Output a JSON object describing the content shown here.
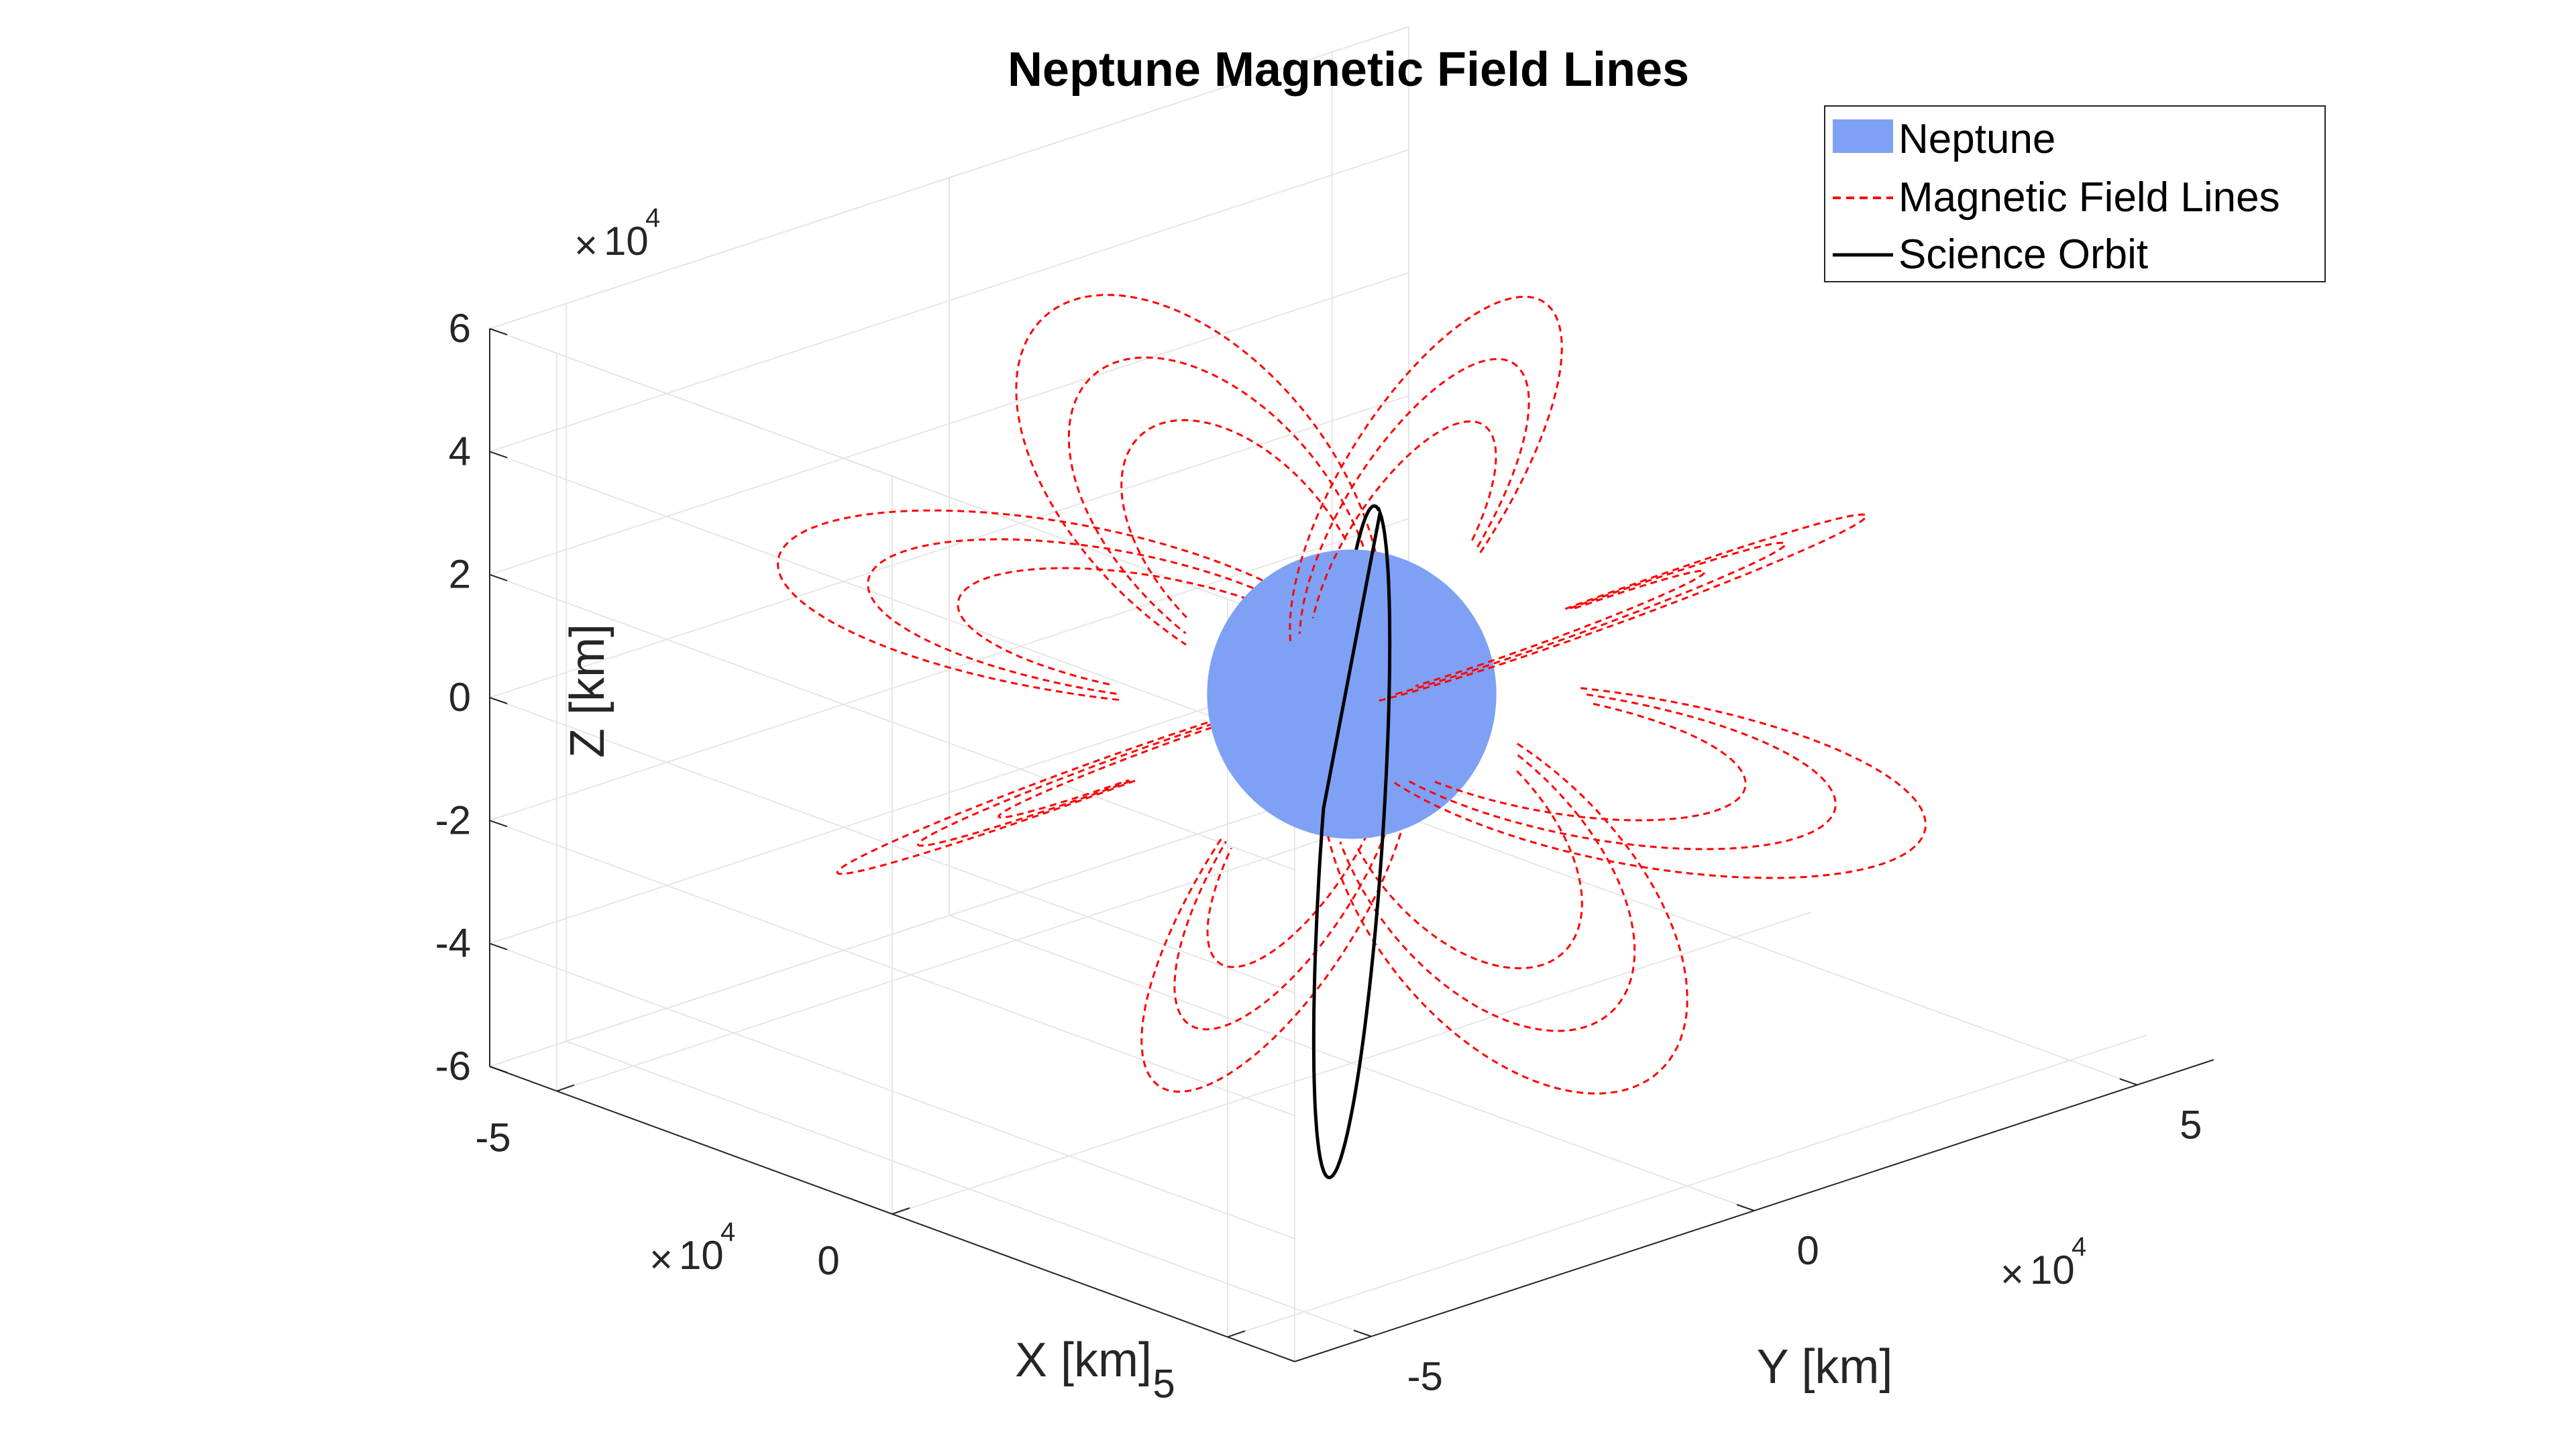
{
  "chart_data": {
    "type": "line",
    "title": "Neptune Magnetic Field Lines",
    "xlabel": "X [km]",
    "ylabel": "Y [km]",
    "zlabel": "Z [km]",
    "axis_exponent": "10",
    "axis_exponent_power": "4",
    "axis_exponent_prefix": "×",
    "xlim": [
      -60000,
      60000
    ],
    "ylim": [
      -60000,
      60000
    ],
    "zlim": [
      -60000,
      60000
    ],
    "x_ticks": [
      {
        "value": -50000,
        "label": "-5"
      },
      {
        "value": 0,
        "label": "0"
      },
      {
        "value": 50000,
        "label": "5"
      }
    ],
    "y_ticks": [
      {
        "value": -50000,
        "label": "-5"
      },
      {
        "value": 0,
        "label": "0"
      },
      {
        "value": 50000,
        "label": "5"
      }
    ],
    "z_ticks": [
      {
        "value": 60000,
        "label": "6"
      },
      {
        "value": 40000,
        "label": "4"
      },
      {
        "value": 20000,
        "label": "2"
      },
      {
        "value": 0,
        "label": "0"
      },
      {
        "value": -20000,
        "label": "-2"
      },
      {
        "value": -40000,
        "label": "-4"
      },
      {
        "value": -60000,
        "label": "-6"
      }
    ],
    "grid": true,
    "legend_position": "top-right",
    "series": [
      {
        "name": "Neptune",
        "kind": "sphere",
        "color": "#7ea1f5",
        "radius_km": 24764,
        "center": [
          0,
          0,
          0
        ]
      },
      {
        "name": "Magnetic Field Lines",
        "kind": "dipole_field_lines",
        "color": "#ff0000",
        "style": "dashed",
        "shells_L": [
          1.75,
          2.15,
          2.55
        ],
        "tilt_deg": 47,
        "azimuths_deg": [
          0,
          45,
          90,
          135,
          180,
          225,
          270,
          315
        ]
      },
      {
        "name": "Science Orbit",
        "kind": "orbit",
        "color": "#000000",
        "style": "solid",
        "approx_extent_km": {
          "x": [
            -40000,
            40000
          ],
          "z": [
            -68000,
            20000
          ]
        }
      }
    ]
  },
  "colors": {
    "neptune": "#7ea1f5",
    "field_lines": "#ff0000",
    "orbit": "#000000",
    "grid": "#e6e6e6",
    "axis": "#262626"
  }
}
